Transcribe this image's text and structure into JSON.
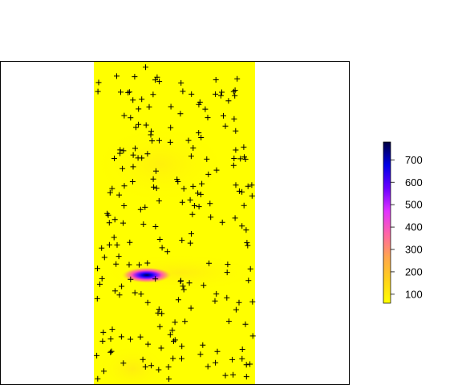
{
  "chart_data": {
    "type": "heatmap",
    "title": "",
    "xlabel": "",
    "ylabel": "",
    "axes_visible": false,
    "colorbar": {
      "ticks": [
        100,
        200,
        300,
        400,
        500,
        600,
        700
      ],
      "tick_labels": [
        "100",
        "200",
        "300",
        "400",
        "500",
        "600",
        "700"
      ],
      "range": [
        60,
        780
      ],
      "colors": [
        "#ffff00",
        "#ffd21a",
        "#ffa64d",
        "#ff66a6",
        "#e033ff",
        "#6a00ff",
        "#0000e6",
        "#000040"
      ]
    },
    "field": {
      "background_value": 90,
      "hotspot_peak_value": 780,
      "secondary_blob_value": 120
    },
    "points_marker": "+",
    "points_count": 220
  }
}
